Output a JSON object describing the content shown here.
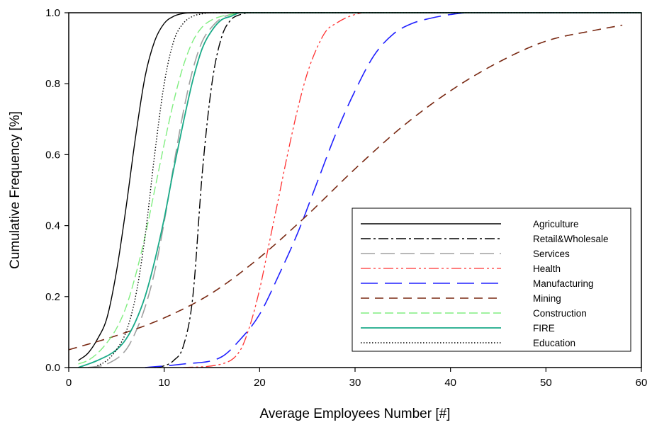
{
  "chart_data": {
    "type": "line",
    "title": "",
    "xlabel": "Average Employees Number [#]",
    "ylabel": "Cumulative Frequency [%]",
    "xlim": [
      0,
      60
    ],
    "ylim": [
      0,
      1.0
    ],
    "xticks": [
      "0",
      "10",
      "20",
      "30",
      "40",
      "50",
      "60"
    ],
    "yticks": [
      "0.0",
      "0.2",
      "0.4",
      "0.6",
      "0.8",
      "1.0"
    ],
    "grid": false,
    "legend_position": "bottom-right",
    "series": [
      {
        "name": "Agriculture",
        "color": "#000000",
        "x": [
          1,
          2,
          3,
          4,
          5,
          6,
          7,
          8,
          9,
          10,
          11,
          12,
          13,
          14,
          15,
          20,
          60
        ],
        "y": [
          0.02,
          0.04,
          0.08,
          0.14,
          0.27,
          0.45,
          0.65,
          0.82,
          0.92,
          0.97,
          0.99,
          0.998,
          1.0,
          1.0,
          1.0,
          1.0,
          1.0
        ]
      },
      {
        "name": "Retail&Wholesale",
        "color": "#000000",
        "x": [
          9,
          10,
          11,
          12,
          13,
          14,
          15,
          16,
          17,
          18,
          19,
          20,
          60
        ],
        "y": [
          0.0,
          0.005,
          0.02,
          0.06,
          0.2,
          0.55,
          0.8,
          0.93,
          0.98,
          0.995,
          1.0,
          1.0,
          1.0
        ]
      },
      {
        "name": "Services",
        "color": "#a0a0a0",
        "x": [
          2,
          4,
          6,
          7,
          8,
          9,
          10,
          11,
          12,
          13,
          14,
          15,
          16,
          17,
          18,
          19,
          20,
          60
        ],
        "y": [
          0.0,
          0.01,
          0.05,
          0.1,
          0.17,
          0.27,
          0.41,
          0.57,
          0.72,
          0.84,
          0.92,
          0.96,
          0.985,
          0.995,
          1.0,
          1.0,
          1.0,
          1.0
        ]
      },
      {
        "name": "Health",
        "color": "#ff3030",
        "x": [
          12,
          16,
          18,
          19,
          20,
          21,
          22,
          23,
          24,
          25,
          26,
          27,
          28,
          29,
          30,
          31,
          32,
          60
        ],
        "y": [
          0.0,
          0.01,
          0.05,
          0.12,
          0.22,
          0.35,
          0.48,
          0.61,
          0.73,
          0.83,
          0.9,
          0.95,
          0.97,
          0.985,
          0.995,
          1.0,
          1.0,
          1.0
        ]
      },
      {
        "name": "Manufacturing",
        "color": "#2020ff",
        "x": [
          8,
          12,
          16,
          18,
          20,
          22,
          24,
          26,
          28,
          30,
          32,
          34,
          36,
          38,
          40,
          42,
          60
        ],
        "y": [
          0.0,
          0.01,
          0.03,
          0.08,
          0.15,
          0.26,
          0.38,
          0.52,
          0.66,
          0.78,
          0.88,
          0.94,
          0.97,
          0.985,
          0.995,
          1.0,
          1.0
        ]
      },
      {
        "name": "Mining",
        "color": "#7a2a14",
        "x": [
          0,
          5,
          10,
          15,
          20,
          25,
          30,
          35,
          40,
          45,
          50,
          55,
          58
        ],
        "y": [
          0.05,
          0.09,
          0.14,
          0.21,
          0.31,
          0.43,
          0.56,
          0.68,
          0.78,
          0.86,
          0.92,
          0.95,
          0.965
        ]
      },
      {
        "name": "Construction",
        "color": "#80ee80",
        "x": [
          1,
          2,
          3,
          4,
          5,
          6,
          7,
          8,
          9,
          10,
          11,
          12,
          13,
          14,
          15,
          16,
          17,
          18,
          20,
          60
        ],
        "y": [
          0.01,
          0.02,
          0.04,
          0.07,
          0.11,
          0.17,
          0.26,
          0.37,
          0.5,
          0.63,
          0.75,
          0.85,
          0.92,
          0.96,
          0.98,
          0.99,
          0.995,
          1.0,
          1.0,
          1.0
        ]
      },
      {
        "name": "FIRE",
        "color": "#1aaa88",
        "x": [
          1,
          3,
          5,
          6,
          7,
          8,
          9,
          10,
          11,
          12,
          13,
          14,
          15,
          16,
          17,
          18,
          19,
          20,
          60
        ],
        "y": [
          0.0,
          0.02,
          0.05,
          0.08,
          0.13,
          0.2,
          0.3,
          0.42,
          0.56,
          0.69,
          0.81,
          0.9,
          0.95,
          0.98,
          0.99,
          1.0,
          1.0,
          1.0,
          1.0
        ]
      },
      {
        "name": "Education",
        "color": "#000000",
        "x": [
          3,
          4,
          5,
          6,
          7,
          8,
          9,
          10,
          11,
          12,
          13,
          14,
          15,
          16,
          20,
          60
        ],
        "y": [
          0.005,
          0.02,
          0.05,
          0.1,
          0.2,
          0.37,
          0.6,
          0.8,
          0.92,
          0.97,
          0.99,
          0.997,
          1.0,
          1.0,
          1.0,
          1.0
        ]
      }
    ]
  }
}
